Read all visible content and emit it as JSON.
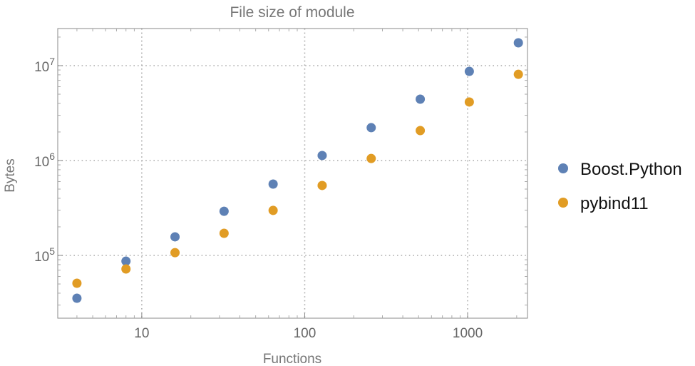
{
  "chart_data": {
    "type": "scatter",
    "title": "File size of module",
    "xlabel": "Functions",
    "ylabel": "Bytes",
    "xscale": "log",
    "yscale": "log",
    "xlim": [
      3.05,
      2330
    ],
    "ylim": [
      21800,
      24600000
    ],
    "grid": true,
    "legend_position": "right",
    "x_ticks": [
      {
        "value": 10,
        "label": "10"
      },
      {
        "value": 100,
        "label": "100"
      },
      {
        "value": 1000,
        "label": "1000"
      }
    ],
    "y_ticks": [
      {
        "value": 100000,
        "base": "10",
        "exp": "5"
      },
      {
        "value": 1000000,
        "base": "10",
        "exp": "6"
      },
      {
        "value": 10000000,
        "base": "10",
        "exp": "7"
      }
    ],
    "x": [
      4,
      8,
      16,
      32,
      64,
      128,
      256,
      512,
      1024,
      2048
    ],
    "series": [
      {
        "name": "Boost.Python",
        "color": "#5E81B5",
        "values": [
          35400,
          87000,
          157000,
          292000,
          565000,
          1130000,
          2220000,
          4430000,
          8700000,
          17400000
        ]
      },
      {
        "name": "pybind11",
        "color": "#E19C24",
        "values": [
          50900,
          72000,
          107000,
          171000,
          298000,
          546000,
          1050000,
          2070000,
          4140000,
          8100000
        ]
      }
    ]
  }
}
